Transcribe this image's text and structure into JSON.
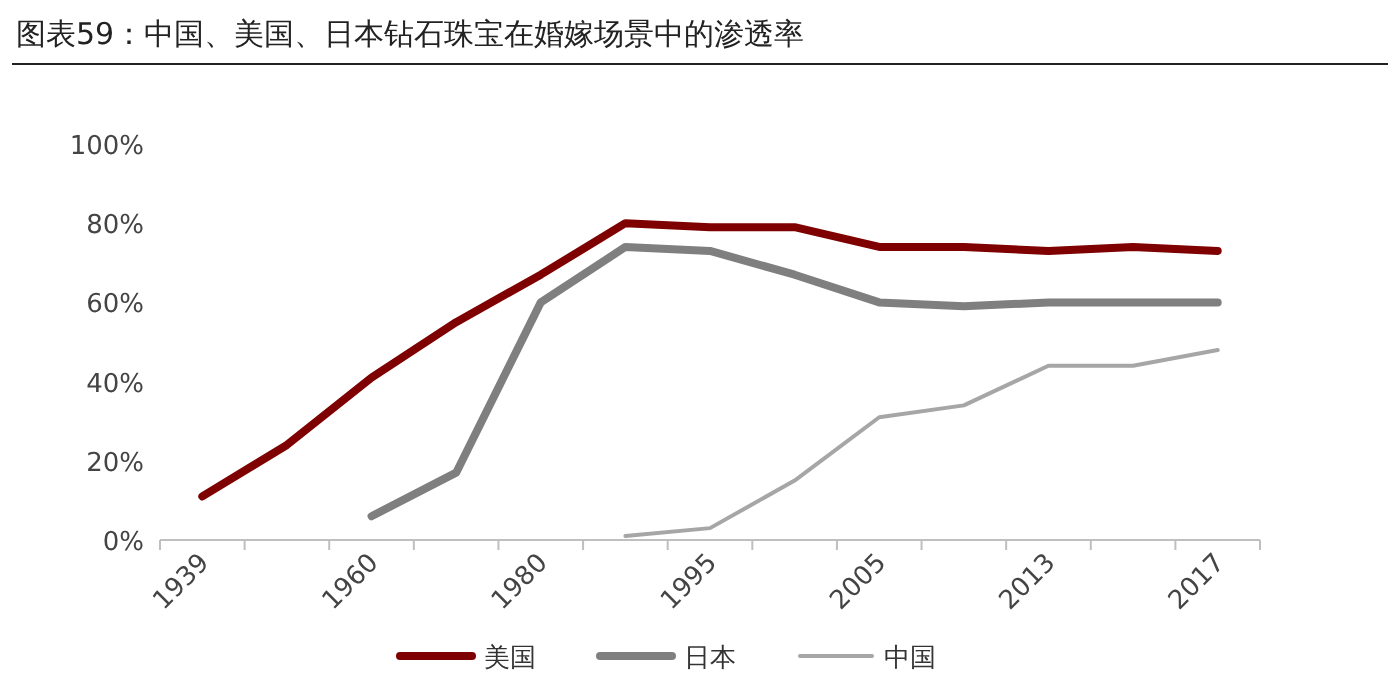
{
  "chart_data": {
    "type": "line",
    "title": "图表59：中国、美国、日本钻石珠宝在婚嫁场景中的渗透率",
    "categories": [
      "1939",
      null,
      "1960",
      null,
      "1980",
      null,
      "1995",
      null,
      "2005",
      null,
      "2013",
      null,
      "2017"
    ],
    "series": [
      {
        "name": "美国",
        "color": "#7f0000",
        "values": [
          11,
          24,
          41,
          55,
          67,
          80,
          79,
          79,
          74,
          74,
          73,
          74,
          73
        ]
      },
      {
        "name": "日本",
        "color": "#7f7f7f",
        "values": [
          null,
          null,
          6,
          17,
          60,
          74,
          73,
          67,
          60,
          59,
          60,
          60,
          60
        ]
      },
      {
        "name": "中国",
        "color": "#a6a6a6",
        "values": [
          null,
          null,
          null,
          null,
          null,
          1,
          3,
          15,
          31,
          34,
          44,
          44,
          48
        ]
      }
    ],
    "ylim": [
      0,
      100
    ],
    "yticks": [
      {
        "value": 0,
        "label": "0%"
      },
      {
        "value": 20,
        "label": "20%"
      },
      {
        "value": 40,
        "label": "40%"
      },
      {
        "value": 60,
        "label": "60%"
      },
      {
        "value": 80,
        "label": "80%"
      },
      {
        "value": 100,
        "label": "100%"
      }
    ],
    "grid": false,
    "legend": "bottom",
    "marker": "none",
    "line_style": "solid"
  }
}
